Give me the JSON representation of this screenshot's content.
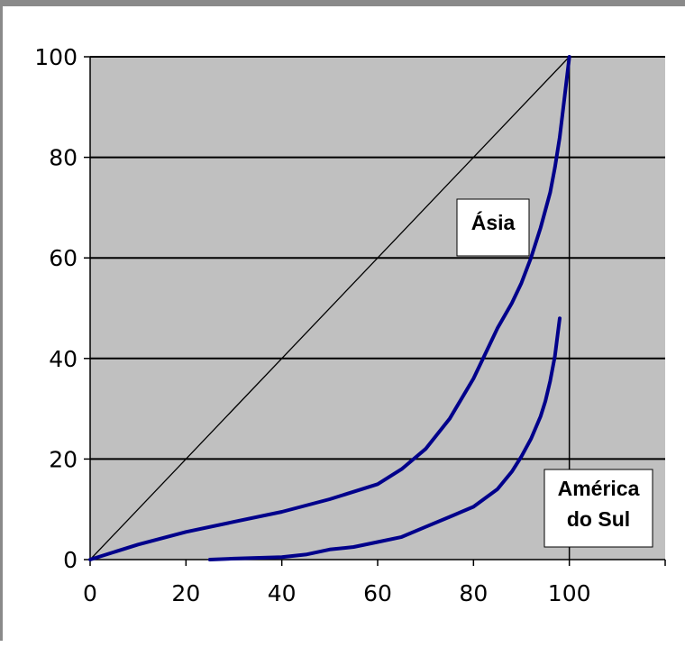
{
  "chart_data": {
    "type": "line",
    "title": "",
    "xlabel": "",
    "ylabel": "",
    "xlim": [
      0,
      120
    ],
    "ylim": [
      0,
      100
    ],
    "xticks": [
      0,
      20,
      40,
      60,
      80,
      100
    ],
    "yticks": [
      0,
      20,
      40,
      60,
      80,
      100
    ],
    "grid": "horizontal",
    "plot_background": "#c0c0c0",
    "series": [
      {
        "color": "#000000",
        "x": [
          0,
          100
        ],
        "y": [
          0,
          100
        ]
      },
      {
        "color": "#00008b",
        "x": [
          0,
          10,
          20,
          30,
          40,
          50,
          60,
          65,
          70,
          75,
          80,
          83,
          85,
          88,
          90,
          92,
          94,
          96,
          97,
          98,
          99,
          100
        ],
        "y": [
          0,
          3,
          5.5,
          7.5,
          9.5,
          12,
          15,
          18,
          22,
          28,
          36,
          42,
          46,
          51,
          55,
          60,
          66,
          73,
          78,
          84,
          92,
          100
        ]
      },
      {
        "color": "#00008b",
        "x": [
          25,
          30,
          40,
          45,
          50,
          55,
          60,
          65,
          70,
          75,
          80,
          85,
          88,
          90,
          92,
          94,
          95,
          96,
          97,
          98
        ],
        "y": [
          0,
          0.2,
          0.5,
          1,
          2,
          2.5,
          3.5,
          4.5,
          6.5,
          8.5,
          10.5,
          14,
          17.5,
          20.5,
          24,
          28.5,
          31.5,
          35.5,
          40.5,
          48
        ]
      }
    ],
    "annotations": [
      {
        "text": "Ásia"
      },
      {
        "text": "América\ndo Sul"
      }
    ]
  }
}
